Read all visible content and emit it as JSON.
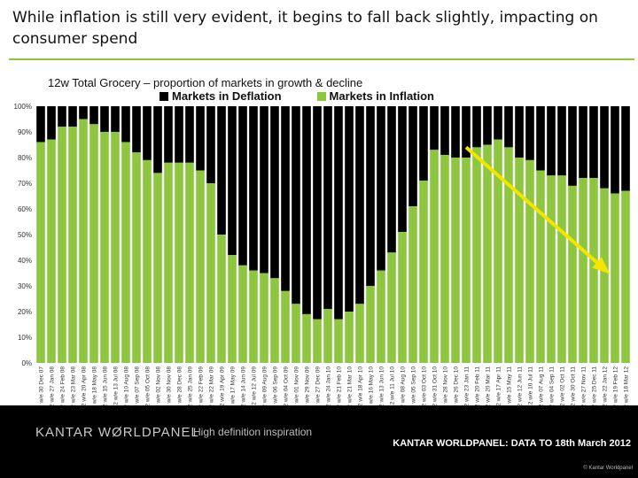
{
  "headline": "While inflation is still very evident, it begins to fall back slightly, impacting on consumer spend",
  "footer": {
    "logo": "KANTAR WØRLDPANEL",
    "tagline": "High definition inspiration",
    "source": "KANTAR WORLDPANEL: DATA TO 18th March 2012",
    "copyright": "© Kantar Worldpanel"
  },
  "colors": {
    "inflation": "#8dc63f",
    "deflation": "#000000",
    "arrow": "#f2e600"
  },
  "chart_data": {
    "type": "bar",
    "stacked": true,
    "title": "12w Total Grocery – proportion of markets in growth & decline",
    "ylim": [
      0,
      100
    ],
    "yticks": [
      "0%",
      "10%",
      "20%",
      "30%",
      "40%",
      "50%",
      "60%",
      "70%",
      "80%",
      "90%",
      "100%"
    ],
    "grid": false,
    "legend_position": "top",
    "categories": [
      "12 w/e 30 Dec 07",
      "12 w/e 27 Jan 08",
      "12 w/e 24 Feb 08",
      "12 w/e 23 Mar 08",
      "12 w/e 20 Apr 08",
      "12 w/e 18 May 08",
      "12 w/e 15 Jun 08",
      "12 w/e 13 Jul 08",
      "12 w/e 10 Aug 08",
      "12 w/e 07 Sep 08",
      "12 w/e 05 Oct 08",
      "12 w/e 02 Nov 08",
      "12 w/e 30 Nov 08",
      "12 w/e 28 Dec 08",
      "12 w/e 25 Jan 09",
      "12 w/e 22 Feb 09",
      "12 w/e 22 Mar 09",
      "12 w/e 19 Apr 09",
      "12 w/e 17 May 09",
      "12 w/e 14 Jun 09",
      "12 w/e 12 Jul 09",
      "12 w/e 09 Aug 09",
      "12 w/e 06 Sep 09",
      "12 w/e 04 Oct 09",
      "12 w/e 01 Nov 09",
      "12 w/e 29 Nov 09",
      "12 w/e 27 Dec 09",
      "12 w/e 24 Jan 10",
      "12 w/e 21 Feb 10",
      "12 w/e 21 Mar 10",
      "12 w/e 18 Apr 10",
      "12 w/e 16 May 10",
      "12 w/e 13 Jun 10",
      "12 w/e 11 Jul 10",
      "12 w/e 08 Aug 10",
      "12 w/e 05 Sep 10",
      "12 w/e 03 Oct 10",
      "12 w/e 31 Oct 10",
      "12 w/e 28 Nov 10",
      "12 w/e 26 Dec 10",
      "12 w/e 23 Jan 11",
      "12 w/e 20 Feb 11",
      "12 w/e 20 Mar 11",
      "12 w/e 17 Apr 11",
      "12 w/e 15 May 11",
      "12 w/e 12 Jun 11",
      "12 w/e 10 Jul 11",
      "12 w/e 07 Aug 11",
      "12 w/e 04 Sep 11",
      "12 w/e 02 Oct 11",
      "12 w/e 30 Oct 11",
      "12 w/e 27 Nov 11",
      "12 w/e 25 Dec 11",
      "12 w/e 22 Jan 12",
      "12 w/e 19 Feb 12",
      "12 w/e 18 Mar 12"
    ],
    "series": [
      {
        "name": "Markets in Inflation",
        "values": [
          86,
          87,
          92,
          92,
          95,
          93,
          90,
          90,
          86,
          82,
          79,
          74,
          78,
          78,
          78,
          75,
          70,
          50,
          42,
          38,
          36,
          35,
          33,
          28,
          23,
          19,
          17,
          21,
          17,
          20,
          23,
          30,
          36,
          43,
          51,
          61,
          71,
          83,
          81,
          80,
          80,
          84,
          85,
          87,
          84,
          80,
          79,
          75,
          73,
          73,
          69,
          72,
          72,
          68,
          66,
          67
        ]
      },
      {
        "name": "Markets in Deflation",
        "values": [
          14,
          13,
          8,
          8,
          5,
          7,
          10,
          10,
          14,
          18,
          21,
          26,
          22,
          22,
          22,
          25,
          30,
          50,
          58,
          62,
          64,
          65,
          67,
          72,
          77,
          81,
          83,
          79,
          83,
          80,
          77,
          70,
          64,
          57,
          49,
          39,
          29,
          17,
          19,
          20,
          20,
          16,
          15,
          13,
          16,
          20,
          21,
          25,
          27,
          27,
          31,
          28,
          28,
          32,
          34,
          33
        ]
      }
    ],
    "annotation": {
      "type": "arrow",
      "from_category": "12 w/e 23 Jan 11",
      "from_value": 84,
      "to_category": "12 w/e 18 Mar 12",
      "to_value": 36
    }
  }
}
